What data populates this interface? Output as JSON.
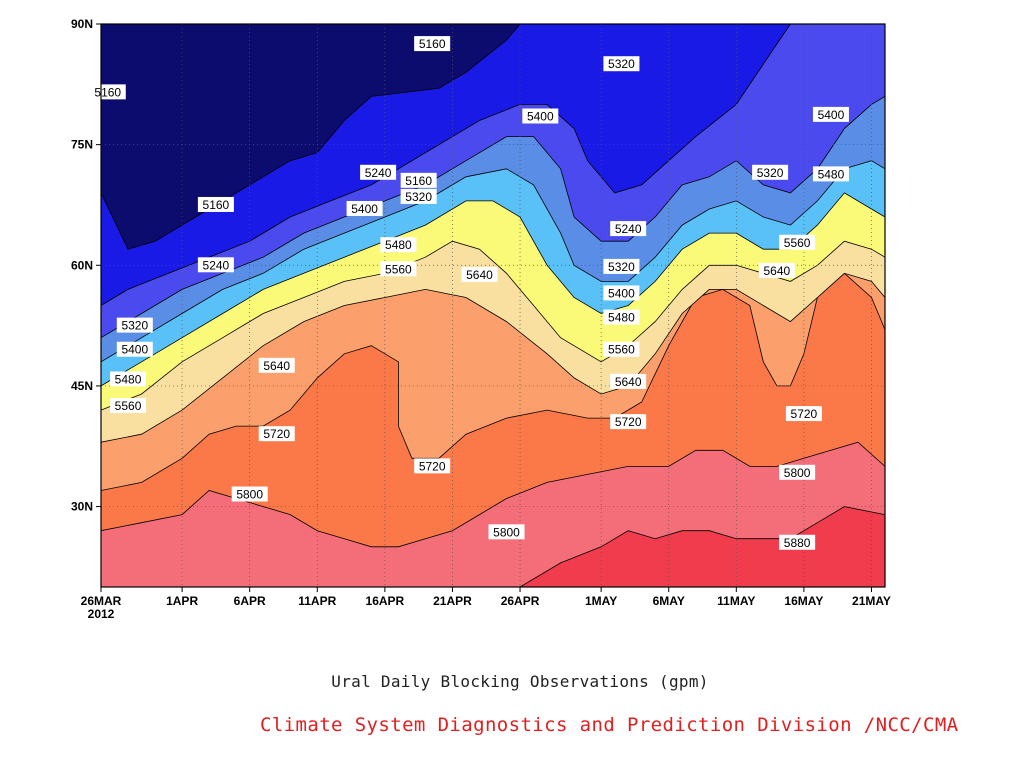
{
  "chart_data": {
    "type": "contour",
    "title": "Ural Daily Blocking Observations (gpm)",
    "credit": "Climate System Diagnostics and Prediction Division /NCC/CMA",
    "x_ticks": [
      "26MAR",
      "1APR",
      "6APR",
      "11APR",
      "16APR",
      "21APR",
      "26APR",
      "1MAY",
      "6MAY",
      "11MAY",
      "16MAY",
      "21MAY"
    ],
    "x_year_label": "2012",
    "y_ticks": [
      "30N",
      "45N",
      "60N",
      "75N",
      "90N"
    ],
    "y_tick_values": [
      30,
      45,
      60,
      75,
      90
    ],
    "x_range_days": [
      0,
      58
    ],
    "y_range": [
      20,
      90
    ],
    "grid": "dotted",
    "contour_levels": [
      5160,
      5240,
      5320,
      5400,
      5480,
      5560,
      5640,
      5720,
      5800,
      5880
    ],
    "colors": [
      "#0c0c6e",
      "#1a1ae6",
      "#4a4aee",
      "#5a8ee6",
      "#5ac0f8",
      "#fafa78",
      "#fae0a0",
      "#fba06c",
      "#fb7848",
      "#f46e7a",
      "#f03c4c"
    ],
    "labels": [
      {
        "text": "5160",
        "x_day": 0.5,
        "y": 81.5
      },
      {
        "text": "5160",
        "x_day": 24.5,
        "y": 87.5
      },
      {
        "text": "5160",
        "x_day": 23.5,
        "y": 70.5
      },
      {
        "text": "5160",
        "x_day": 8.5,
        "y": 67.5
      },
      {
        "text": "5240",
        "x_day": 20.5,
        "y": 71.5
      },
      {
        "text": "5240",
        "x_day": 8.5,
        "y": 60.0
      },
      {
        "text": "5240",
        "x_day": 39.0,
        "y": 64.5
      },
      {
        "text": "5320",
        "x_day": 38.5,
        "y": 85.0
      },
      {
        "text": "5320",
        "x_day": 23.5,
        "y": 68.5
      },
      {
        "text": "5320",
        "x_day": 2.5,
        "y": 52.5
      },
      {
        "text": "5320",
        "x_day": 38.5,
        "y": 59.8
      },
      {
        "text": "5320",
        "x_day": 49.5,
        "y": 71.5
      },
      {
        "text": "5400",
        "x_day": 32.5,
        "y": 78.5
      },
      {
        "text": "5400",
        "x_day": 19.5,
        "y": 67.0
      },
      {
        "text": "5400",
        "x_day": 2.5,
        "y": 49.5
      },
      {
        "text": "5400",
        "x_day": 38.5,
        "y": 56.5
      },
      {
        "text": "5400",
        "x_day": 54.0,
        "y": 78.7
      },
      {
        "text": "5480",
        "x_day": 2.0,
        "y": 45.8
      },
      {
        "text": "5480",
        "x_day": 22.0,
        "y": 62.5
      },
      {
        "text": "5480",
        "x_day": 38.5,
        "y": 53.5
      },
      {
        "text": "5480",
        "x_day": 54.0,
        "y": 71.3
      },
      {
        "text": "5560",
        "x_day": 2.0,
        "y": 42.5
      },
      {
        "text": "5560",
        "x_day": 22.0,
        "y": 59.5
      },
      {
        "text": "5560",
        "x_day": 38.5,
        "y": 49.5
      },
      {
        "text": "5560",
        "x_day": 51.5,
        "y": 62.8
      },
      {
        "text": "5640",
        "x_day": 13.0,
        "y": 47.5
      },
      {
        "text": "5640",
        "x_day": 28.0,
        "y": 58.8
      },
      {
        "text": "5640",
        "x_day": 39.0,
        "y": 45.5
      },
      {
        "text": "5640",
        "x_day": 50.0,
        "y": 59.3
      },
      {
        "text": "5720",
        "x_day": 13.0,
        "y": 39.0
      },
      {
        "text": "5720",
        "x_day": 24.5,
        "y": 35.0
      },
      {
        "text": "5720",
        "x_day": 39.0,
        "y": 40.5
      },
      {
        "text": "5720",
        "x_day": 52.0,
        "y": 41.5
      },
      {
        "text": "5800",
        "x_day": 11.0,
        "y": 31.5
      },
      {
        "text": "5800",
        "x_day": 30.0,
        "y": 26.8
      },
      {
        "text": "5800",
        "x_day": 51.5,
        "y": 34.2
      },
      {
        "text": "5880",
        "x_day": 51.5,
        "y": 25.5
      }
    ]
  }
}
